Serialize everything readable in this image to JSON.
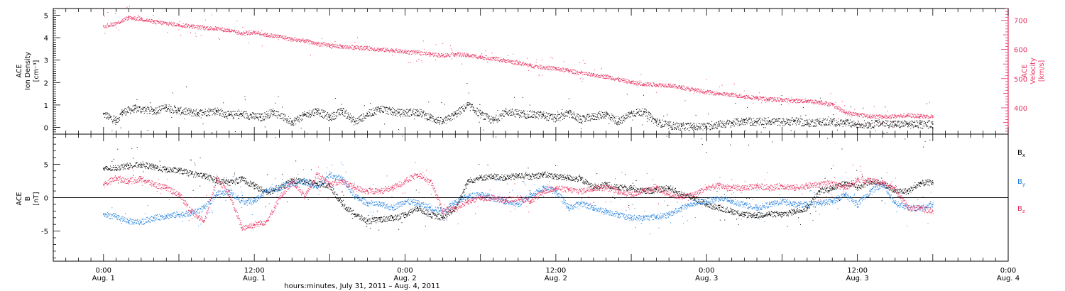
{
  "chart_data": [
    {
      "type": "scatter",
      "panel": "top",
      "ylabel_left": [
        "ACE",
        "Ion Density",
        "[cm⁻³]"
      ],
      "ylabel_right": [
        "ACE",
        "Velocity",
        "[km/s]"
      ],
      "ylim_left": [
        -0.3,
        5.3
      ],
      "yticks_left": [
        0,
        1,
        2,
        3,
        4,
        5
      ],
      "ylim_right": [
        310,
        740
      ],
      "yticks_right": [
        400,
        500,
        600,
        700
      ],
      "series": [
        {
          "axis": "left",
          "color": "#000000",
          "points": [
            [
              0,
              0.6
            ],
            [
              2,
              0.3
            ],
            [
              3,
              0.7
            ],
            [
              5,
              0.85
            ],
            [
              8,
              0.75
            ],
            [
              10,
              0.9
            ],
            [
              12,
              0.75
            ],
            [
              15,
              0.65
            ],
            [
              18,
              0.75
            ],
            [
              20,
              0.55
            ],
            [
              22,
              0.6
            ],
            [
              25,
              0.45
            ],
            [
              27,
              0.7
            ],
            [
              30,
              0.25
            ],
            [
              32,
              0.55
            ],
            [
              34,
              0.75
            ],
            [
              36,
              0.45
            ],
            [
              38,
              0.75
            ],
            [
              40,
              0.25
            ],
            [
              42,
              0.6
            ],
            [
              44,
              0.85
            ],
            [
              47,
              0.65
            ],
            [
              50,
              0.7
            ],
            [
              52,
              0.45
            ],
            [
              54,
              0.25
            ],
            [
              56,
              0.6
            ],
            [
              58,
              1.0
            ],
            [
              60,
              0.6
            ],
            [
              62,
              0.3
            ],
            [
              64,
              0.7
            ],
            [
              67,
              0.6
            ],
            [
              70,
              0.55
            ],
            [
              72,
              0.4
            ],
            [
              74,
              0.65
            ],
            [
              76,
              0.35
            ],
            [
              78,
              0.5
            ],
            [
              80,
              0.6
            ],
            [
              82,
              0.25
            ],
            [
              84,
              0.65
            ],
            [
              86,
              0.7
            ],
            [
              88,
              0.25
            ],
            [
              90,
              0.1
            ],
            [
              92,
              0.05
            ],
            [
              94,
              0.05
            ],
            [
              96,
              0.05
            ],
            [
              98,
              0.15
            ],
            [
              100,
              0.2
            ],
            [
              102,
              0.3
            ],
            [
              104,
              0.25
            ],
            [
              106,
              0.3
            ],
            [
              108,
              0.25
            ],
            [
              110,
              0.3
            ],
            [
              112,
              0.2
            ],
            [
              114,
              0.25
            ],
            [
              116,
              0.25
            ],
            [
              118,
              0.2
            ],
            [
              120,
              0.15
            ],
            [
              122,
              0.15
            ],
            [
              124,
              0.2
            ],
            [
              126,
              0.15
            ],
            [
              128,
              0.15
            ],
            [
              130,
              0.15
            ],
            [
              132,
              0.15
            ]
          ]
        },
        {
          "axis": "right",
          "color": "#e8315f",
          "points": [
            [
              0,
              680
            ],
            [
              2,
              690
            ],
            [
              4,
              710
            ],
            [
              6,
              705
            ],
            [
              8,
              695
            ],
            [
              10,
              690
            ],
            [
              12,
              685
            ],
            [
              14,
              680
            ],
            [
              16,
              675
            ],
            [
              18,
              672
            ],
            [
              20,
              665
            ],
            [
              22,
              655
            ],
            [
              24,
              660
            ],
            [
              26,
              650
            ],
            [
              28,
              645
            ],
            [
              30,
              635
            ],
            [
              32,
              630
            ],
            [
              34,
              620
            ],
            [
              36,
              615
            ],
            [
              38,
              610
            ],
            [
              40,
              608
            ],
            [
              42,
              605
            ],
            [
              44,
              600
            ],
            [
              46,
              598
            ],
            [
              48,
              592
            ],
            [
              50,
              590
            ],
            [
              52,
              585
            ],
            [
              54,
              580
            ],
            [
              56,
              585
            ],
            [
              58,
              580
            ],
            [
              60,
              575
            ],
            [
              62,
              570
            ],
            [
              64,
              562
            ],
            [
              66,
              555
            ],
            [
              68,
              545
            ],
            [
              70,
              540
            ],
            [
              72,
              535
            ],
            [
              74,
              528
            ],
            [
              76,
              520
            ],
            [
              78,
              512
            ],
            [
              80,
              508
            ],
            [
              82,
              498
            ],
            [
              84,
              488
            ],
            [
              86,
              482
            ],
            [
              88,
              480
            ],
            [
              90,
              478
            ],
            [
              92,
              470
            ],
            [
              94,
              462
            ],
            [
              96,
              455
            ],
            [
              98,
              450
            ],
            [
              100,
              445
            ],
            [
              102,
              440
            ],
            [
              104,
              435
            ],
            [
              106,
              430
            ],
            [
              108,
              428
            ],
            [
              110,
              425
            ],
            [
              112,
              425
            ],
            [
              114,
              420
            ],
            [
              116,
              412
            ],
            [
              118,
              385
            ],
            [
              120,
              378
            ],
            [
              122,
              372
            ],
            [
              124,
              370
            ],
            [
              126,
              372
            ],
            [
              128,
              375
            ],
            [
              130,
              372
            ],
            [
              132,
              372
            ]
          ]
        }
      ]
    },
    {
      "type": "line",
      "panel": "bottom",
      "ylabel": [
        "ACE",
        "B",
        "[nT]"
      ],
      "ylim": [
        -9.5,
        9.5
      ],
      "yticks": [
        -5,
        0,
        5
      ],
      "legend_placement": "right",
      "x": [
        0,
        2,
        4,
        6,
        8,
        10,
        12,
        14,
        16,
        18,
        20,
        22,
        24,
        26,
        28,
        30,
        32,
        34,
        36,
        38,
        40,
        42,
        44,
        46,
        48,
        50,
        52,
        54,
        56,
        58,
        60,
        62,
        64,
        66,
        68,
        70,
        72,
        74,
        76,
        78,
        80,
        82,
        84,
        86,
        88,
        90,
        92,
        94,
        96,
        98,
        100,
        102,
        104,
        106,
        108,
        110,
        112,
        114,
        116,
        118,
        120,
        122,
        124,
        126,
        128,
        130,
        132
      ],
      "series": [
        {
          "name": "B",
          "subscript": "x",
          "color": "#000000",
          "values": [
            4.3,
            4.5,
            4.8,
            5.0,
            4.6,
            4.2,
            4.1,
            3.6,
            3.3,
            2.6,
            2.3,
            2.8,
            1.8,
            0.8,
            1.5,
            2.6,
            2.5,
            2.1,
            1.8,
            -1.0,
            -2.5,
            -3.5,
            -3.2,
            -3.0,
            -2.5,
            -1.5,
            -2.5,
            -3.0,
            -1.5,
            2.5,
            3.0,
            3.2,
            3.0,
            3.3,
            3.2,
            3.5,
            3.2,
            3.0,
            2.8,
            1.5,
            2.0,
            1.5,
            1.5,
            1.0,
            1.2,
            1.5,
            0.5,
            0.0,
            -1.0,
            -1.5,
            -2.0,
            -2.5,
            -2.6,
            -2.4,
            -2.5,
            -2.0,
            -1.5,
            1.0,
            1.5,
            2.2,
            1.5,
            2.5,
            2.2,
            1.0,
            1.0,
            2.2,
            2.3
          ]
        },
        {
          "name": "B",
          "subscript": "y",
          "color": "#1f7fe0",
          "values": [
            -2.5,
            -2.8,
            -3.5,
            -3.6,
            -3.0,
            -2.7,
            -2.5,
            -2.3,
            -1.5,
            0.5,
            1.0,
            -0.5,
            -0.5,
            1.2,
            1.5,
            2.2,
            2.5,
            1.5,
            3.5,
            2.8,
            0.2,
            -0.8,
            -1.0,
            -1.5,
            -0.5,
            -0.8,
            -1.5,
            -2.0,
            -0.5,
            0.2,
            0.5,
            0.0,
            -0.5,
            -1.0,
            0.5,
            1.5,
            1.0,
            -1.5,
            -0.8,
            -1.5,
            -2.0,
            -2.5,
            -3.0,
            -3.0,
            -2.8,
            -2.5,
            -1.5,
            -0.8,
            -0.5,
            0.0,
            -0.5,
            -1.0,
            -1.5,
            -1.0,
            -0.5,
            -1.0,
            -1.0,
            -0.8,
            -0.5,
            0.5,
            -1.0,
            1.0,
            2.0,
            -0.8,
            -1.5,
            -1.5,
            -1.0
          ]
        },
        {
          "name": "B",
          "subscript": "z",
          "color": "#e8315f",
          "values": [
            2.0,
            3.0,
            2.5,
            2.8,
            2.0,
            1.5,
            0.5,
            -2.0,
            -3.5,
            3.0,
            0.5,
            -4.5,
            -4.0,
            -3.5,
            0.0,
            2.5,
            0.2,
            3.5,
            2.0,
            2.5,
            1.5,
            1.0,
            1.0,
            1.5,
            2.5,
            3.5,
            2.5,
            -2.0,
            -1.5,
            -0.5,
            0.0,
            0.0,
            -0.3,
            0.0,
            -0.5,
            1.0,
            1.5,
            1.2,
            1.0,
            1.5,
            1.5,
            1.0,
            0.5,
            1.0,
            1.5,
            0.5,
            0.2,
            0.5,
            1.5,
            1.8,
            1.5,
            1.5,
            1.8,
            1.5,
            1.8,
            1.5,
            1.8,
            2.0,
            2.2,
            1.5,
            2.8,
            2.5,
            2.2,
            1.5,
            -1.5,
            -1.5,
            -2.0
          ]
        }
      ]
    }
  ],
  "x_axis": {
    "xlim": [
      -8,
      144
    ],
    "ticks": [
      {
        "x": 0,
        "time": "0:00",
        "day": "Aug. 1"
      },
      {
        "x": 24,
        "time": "12:00",
        "day": "Aug. 1"
      },
      {
        "x": 48,
        "time": "0:00",
        "day": "Aug. 2"
      },
      {
        "x": 72,
        "time": "12:00",
        "day": "Aug. 2"
      },
      {
        "x": 96,
        "time": "0:00",
        "day": "Aug. 3"
      },
      {
        "x": 120,
        "time": "12:00",
        "day": "Aug. 3"
      },
      {
        "x": 144,
        "time": "0:00",
        "day": "Aug. 4"
      }
    ],
    "label": "hours:minutes, July 31, 2011 – Aug.  4, 2011"
  }
}
